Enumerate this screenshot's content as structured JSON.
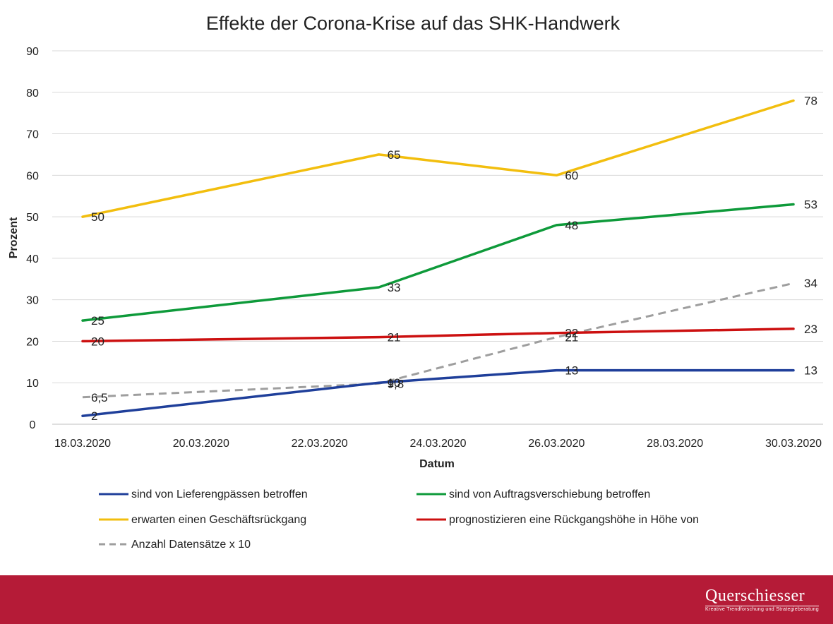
{
  "chart_data": {
    "type": "line",
    "title": "Effekte der Corona-Krise auf das SHK-Handwerk",
    "xlabel": "Datum",
    "ylabel": "Prozent",
    "x_ticks": [
      "18.03.2020",
      "20.03.2020",
      "22.03.2020",
      "24.03.2020",
      "26.03.2020",
      "28.03.2020",
      "30.03.2020"
    ],
    "xlim": [
      "18.03.2020",
      "30.03.2020"
    ],
    "ylim": [
      0,
      90
    ],
    "y_ticks": [
      0,
      10,
      20,
      30,
      40,
      50,
      60,
      70,
      80,
      90
    ],
    "grid": true,
    "legend_position": "bottom",
    "x": [
      "18.03.2020",
      "23.03.2020",
      "26.03.2020",
      "30.03.2020"
    ],
    "series": [
      {
        "name": "sind von Lieferengpässen betroffen",
        "color": "#1f3f9a",
        "dashed": false,
        "values": [
          2,
          10,
          13,
          13
        ],
        "labels": [
          "2",
          "10",
          "13",
          "13"
        ]
      },
      {
        "name": "sind von Auftragsverschiebung betroffen",
        "color": "#0e9a3a",
        "dashed": false,
        "values": [
          25,
          33,
          48,
          53
        ],
        "labels": [
          "25",
          "33",
          "48",
          "53"
        ]
      },
      {
        "name": "erwarten einen Geschäftsrückgang",
        "color": "#f2be0e",
        "dashed": false,
        "values": [
          50,
          65,
          60,
          78
        ],
        "labels": [
          "50",
          "65",
          "60",
          "78"
        ]
      },
      {
        "name": "prognostizieren eine Rückgangshöhe in Höhe von",
        "color": "#cc1010",
        "dashed": false,
        "values": [
          20,
          21,
          22,
          23
        ],
        "labels": [
          "20",
          "21",
          "22",
          "23"
        ]
      },
      {
        "name": "Anzahl Datensätze x 10",
        "color": "#9e9e9e",
        "dashed": true,
        "values": [
          6.5,
          9.8,
          21,
          34
        ],
        "labels": [
          "6,5",
          "9,8",
          "21",
          "34"
        ]
      }
    ]
  },
  "footer": {
    "brand": "Querschiesser",
    "tagline": "Kreative Trendforschung und Strategieberatung",
    "background_color": "#b51b37"
  }
}
